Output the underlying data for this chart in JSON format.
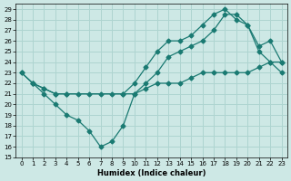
{
  "xlabel": "Humidex (Indice chaleur)",
  "bg_color": "#cde8e5",
  "grid_color": "#aed4d0",
  "line_color": "#1a7a72",
  "xlim": [
    -0.5,
    23.5
  ],
  "ylim": [
    15,
    29.5
  ],
  "xticks": [
    0,
    1,
    2,
    3,
    4,
    5,
    6,
    7,
    8,
    9,
    10,
    11,
    12,
    13,
    14,
    15,
    16,
    17,
    18,
    19,
    20,
    21,
    22,
    23
  ],
  "yticks": [
    15,
    16,
    17,
    18,
    19,
    20,
    21,
    22,
    23,
    24,
    25,
    26,
    27,
    28,
    29
  ],
  "line1_x": [
    0,
    1,
    2,
    3,
    4,
    5,
    6,
    7,
    8,
    9,
    10,
    11,
    12,
    13,
    14,
    15,
    16,
    17,
    18,
    19,
    20,
    21,
    22,
    23
  ],
  "line1_y": [
    23,
    22,
    21.5,
    21,
    21,
    21,
    21,
    21,
    21,
    21,
    21,
    21.5,
    22,
    22,
    22,
    22.5,
    23,
    23,
    23,
    23,
    23,
    23.5,
    24,
    24
  ],
  "line2_x": [
    1,
    2,
    3,
    4,
    5,
    6,
    7,
    8,
    9,
    10,
    11,
    12,
    13,
    14,
    15,
    16,
    17,
    18,
    19,
    20,
    21,
    22,
    23
  ],
  "line2_y": [
    22,
    21,
    20,
    19,
    18.5,
    17.5,
    16,
    16.5,
    18,
    21,
    22,
    23,
    24.5,
    25,
    25.5,
    26,
    27,
    28.5,
    28.5,
    27.5,
    25,
    24,
    23
  ],
  "line3_x": [
    0,
    1,
    2,
    3,
    4,
    9,
    10,
    11,
    12,
    13,
    14,
    15,
    16,
    17,
    18,
    19,
    20,
    21,
    22,
    23
  ],
  "line3_y": [
    23,
    22,
    21.5,
    21,
    21,
    21,
    22,
    23.5,
    25,
    26,
    26,
    26.5,
    27.5,
    28.5,
    29,
    28,
    27.5,
    25.5,
    26,
    24
  ]
}
